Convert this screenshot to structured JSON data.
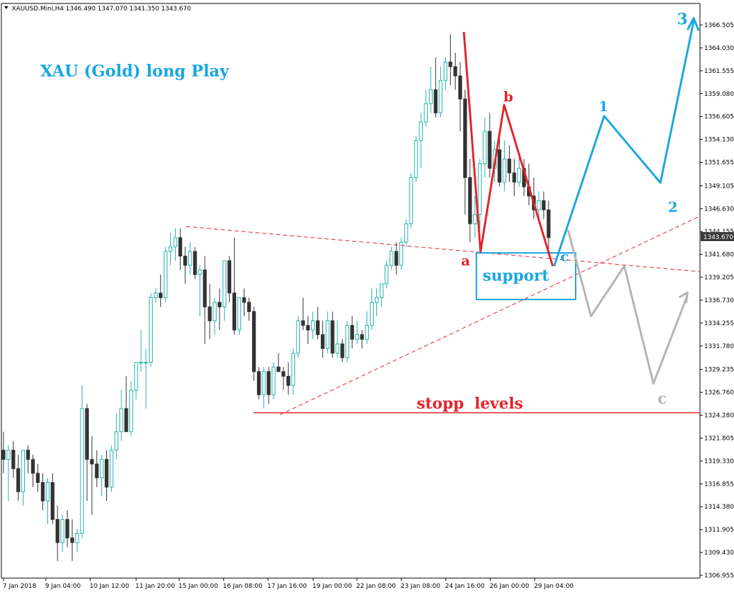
{
  "header": {
    "symbol_line": "XAUUSD.Mini,H4  1346.490 1347.070 1341.350 1343.670"
  },
  "colors": {
    "bull_candle": "#20b2aa",
    "bear_candle": "#333333",
    "red": "#e3242b",
    "blue": "#1aa7e0",
    "grey": "#b4b4b4",
    "price_tag_bg": "#3a3a3a"
  },
  "price_tag": "1343.670",
  "chart_data": {
    "type": "candlestick",
    "title": "XAU (Gold) long Play",
    "ylim": [
      1306.0,
      1368.5
    ],
    "yticks": [
      "1366.505",
      "1364.030",
      "1361.555",
      "1359.080",
      "1356.605",
      "1354.130",
      "1351.655",
      "1349.105",
      "1346.630",
      "1344.155",
      "1341.680",
      "1339.205",
      "1336.730",
      "1334.255",
      "1331.780",
      "1329.235",
      "1326.760",
      "1324.280",
      "1321.805",
      "1319.330",
      "1316.855",
      "1314.380",
      "1311.905",
      "1309.430",
      "1306.955"
    ],
    "xticks": [
      "7 Jan 2018",
      "9 Jan 04:00",
      "10 Jan 12:00",
      "11 Jan 20:00",
      "15 Jan 00:00",
      "16 Jan 08:00",
      "17 Jan 16:00",
      "19 Jan 00:00",
      "22 Jan 08:00",
      "23 Jan 08:00",
      "24 Jan 16:00",
      "26 Jan 00:00",
      "29 Jan 04:00"
    ],
    "candles": [
      [
        1320.5,
        1322.5,
        1318.0,
        1319.5
      ],
      [
        1319.5,
        1321.0,
        1315.0,
        1320.5
      ],
      [
        1320.5,
        1321.5,
        1317.5,
        1318.5
      ],
      [
        1318.5,
        1320.0,
        1315.0,
        1316.0
      ],
      [
        1316.0,
        1320.5,
        1314.5,
        1320.5
      ],
      [
        1320.5,
        1321.0,
        1318.0,
        1319.5
      ],
      [
        1319.5,
        1320.0,
        1316.5,
        1318.0
      ],
      [
        1318.0,
        1319.0,
        1316.0,
        1317.0
      ],
      [
        1317.0,
        1318.0,
        1314.0,
        1315.0
      ],
      [
        1315.0,
        1317.5,
        1312.5,
        1317.0
      ],
      [
        1317.0,
        1318.0,
        1312.5,
        1313.0
      ],
      [
        1313.0,
        1314.5,
        1308.5,
        1310.5
      ],
      [
        1310.5,
        1313.5,
        1309.5,
        1313.0
      ],
      [
        1313.0,
        1314.0,
        1310.0,
        1311.0
      ],
      [
        1311.0,
        1313.0,
        1308.5,
        1310.5
      ],
      [
        1310.5,
        1312.0,
        1309.5,
        1311.5
      ],
      [
        1311.5,
        1327.5,
        1311.0,
        1325.0
      ],
      [
        1325.0,
        1325.5,
        1315.0,
        1319.5
      ],
      [
        1319.5,
        1322.0,
        1313.5,
        1319.0
      ],
      [
        1319.0,
        1320.5,
        1316.5,
        1317.5
      ],
      [
        1317.5,
        1320.0,
        1315.5,
        1319.5
      ],
      [
        1319.5,
        1320.5,
        1315.0,
        1316.5
      ],
      [
        1316.5,
        1321.0,
        1316.0,
        1320.5
      ],
      [
        1320.5,
        1324.5,
        1319.5,
        1322.5
      ],
      [
        1322.5,
        1327.0,
        1321.5,
        1325.0
      ],
      [
        1325.0,
        1328.5,
        1322.5,
        1322.5
      ],
      [
        1322.5,
        1328.0,
        1322.0,
        1327.0
      ],
      [
        1327.0,
        1330.0,
        1326.0,
        1330.0
      ],
      [
        1330.0,
        1333.5,
        1329.0,
        1330.0
      ],
      [
        1330.0,
        1331.5,
        1325.0,
        1330.0
      ],
      [
        1330.0,
        1337.5,
        1329.5,
        1337.0
      ],
      [
        1337.0,
        1338.0,
        1336.5,
        1337.5
      ],
      [
        1337.5,
        1339.5,
        1336.0,
        1337.0
      ],
      [
        1337.0,
        1342.5,
        1336.5,
        1342.0
      ],
      [
        1342.0,
        1344.0,
        1340.5,
        1342.5
      ],
      [
        1342.5,
        1344.5,
        1341.0,
        1343.5
      ],
      [
        1343.5,
        1344.5,
        1340.0,
        1341.5
      ],
      [
        1341.5,
        1342.5,
        1338.5,
        1340.5
      ],
      [
        1340.5,
        1343.0,
        1339.5,
        1342.0
      ],
      [
        1342.0,
        1342.5,
        1339.0,
        1339.5
      ],
      [
        1339.5,
        1340.5,
        1335.0,
        1340.0
      ],
      [
        1340.0,
        1341.5,
        1332.0,
        1336.0
      ],
      [
        1336.0,
        1338.5,
        1332.5,
        1334.5
      ],
      [
        1334.5,
        1337.0,
        1333.0,
        1336.5
      ],
      [
        1336.5,
        1338.0,
        1333.5,
        1336.0
      ],
      [
        1336.0,
        1341.0,
        1334.5,
        1341.0
      ],
      [
        1341.0,
        1341.5,
        1336.5,
        1337.5
      ],
      [
        1337.5,
        1343.5,
        1333.0,
        1333.5
      ],
      [
        1333.5,
        1337.0,
        1333.0,
        1337.0
      ],
      [
        1337.0,
        1338.0,
        1335.0,
        1336.5
      ],
      [
        1336.5,
        1337.0,
        1334.5,
        1335.5
      ],
      [
        1335.5,
        1336.0,
        1328.0,
        1329.0
      ],
      [
        1329.0,
        1329.5,
        1326.0,
        1326.5
      ],
      [
        1326.5,
        1329.5,
        1325.0,
        1329.0
      ],
      [
        1329.0,
        1329.5,
        1325.5,
        1326.5
      ],
      [
        1326.5,
        1330.0,
        1326.0,
        1329.5
      ],
      [
        1329.5,
        1331.0,
        1329.0,
        1329.0
      ],
      [
        1329.0,
        1329.5,
        1327.0,
        1328.5
      ],
      [
        1328.5,
        1330.0,
        1326.5,
        1327.5
      ],
      [
        1327.5,
        1331.5,
        1326.5,
        1331.0
      ],
      [
        1331.0,
        1335.0,
        1330.5,
        1334.5
      ],
      [
        1334.5,
        1337.0,
        1333.5,
        1334.0
      ],
      [
        1334.0,
        1335.0,
        1332.0,
        1333.5
      ],
      [
        1333.5,
        1335.5,
        1332.5,
        1334.5
      ],
      [
        1334.5,
        1336.0,
        1332.5,
        1333.0
      ],
      [
        1333.0,
        1334.5,
        1330.5,
        1331.5
      ],
      [
        1331.5,
        1335.5,
        1331.0,
        1334.5
      ],
      [
        1334.5,
        1335.5,
        1330.5,
        1331.0
      ],
      [
        1331.0,
        1334.5,
        1330.5,
        1332.0
      ],
      [
        1332.0,
        1332.5,
        1330.0,
        1330.5
      ],
      [
        1330.5,
        1334.5,
        1330.0,
        1334.0
      ],
      [
        1334.0,
        1335.0,
        1331.5,
        1332.5
      ],
      [
        1332.5,
        1334.5,
        1332.0,
        1333.0
      ],
      [
        1333.0,
        1333.5,
        1331.5,
        1332.5
      ],
      [
        1332.5,
        1335.5,
        1332.0,
        1334.0
      ],
      [
        1334.0,
        1338.0,
        1333.5,
        1336.5
      ],
      [
        1336.5,
        1338.0,
        1335.0,
        1337.0
      ],
      [
        1337.0,
        1338.5,
        1336.0,
        1338.5
      ],
      [
        1338.5,
        1341.0,
        1338.0,
        1340.5
      ],
      [
        1340.5,
        1342.5,
        1340.0,
        1342.0
      ],
      [
        1342.0,
        1343.0,
        1339.5,
        1340.5
      ],
      [
        1340.5,
        1343.5,
        1340.0,
        1343.0
      ],
      [
        1343.0,
        1345.5,
        1342.5,
        1345.0
      ],
      [
        1345.0,
        1350.5,
        1344.5,
        1350.0
      ],
      [
        1350.0,
        1354.5,
        1349.5,
        1354.0
      ],
      [
        1354.0,
        1357.0,
        1351.0,
        1356.0
      ],
      [
        1356.0,
        1359.5,
        1355.5,
        1358.0
      ],
      [
        1358.0,
        1362.0,
        1357.0,
        1359.5
      ],
      [
        1359.5,
        1363.0,
        1356.5,
        1357.0
      ],
      [
        1357.0,
        1362.0,
        1356.5,
        1360.5
      ],
      [
        1360.5,
        1363.0,
        1359.5,
        1362.5
      ],
      [
        1362.5,
        1365.5,
        1360.0,
        1362.0
      ],
      [
        1362.0,
        1363.5,
        1359.5,
        1361.0
      ],
      [
        1361.0,
        1362.5,
        1355.0,
        1358.5
      ],
      [
        1358.5,
        1359.5,
        1346.0,
        1350.0
      ],
      [
        1350.0,
        1352.0,
        1343.0,
        1345.0
      ],
      [
        1345.0,
        1348.0,
        1343.5,
        1346.0
      ],
      [
        1346.0,
        1352.0,
        1344.5,
        1351.5
      ],
      [
        1351.5,
        1356.5,
        1350.0,
        1355.0
      ],
      [
        1355.0,
        1357.0,
        1350.0,
        1351.0
      ],
      [
        1351.0,
        1354.0,
        1349.5,
        1353.0
      ],
      [
        1353.0,
        1354.5,
        1349.0,
        1349.5
      ],
      [
        1349.5,
        1354.0,
        1348.5,
        1352.0
      ],
      [
        1352.0,
        1353.5,
        1349.5,
        1350.5
      ],
      [
        1350.5,
        1352.0,
        1348.0,
        1349.5
      ],
      [
        1349.5,
        1352.5,
        1349.0,
        1351.0
      ],
      [
        1351.0,
        1352.0,
        1348.0,
        1349.0
      ],
      [
        1349.0,
        1351.5,
        1347.0,
        1348.0
      ],
      [
        1348.0,
        1350.0,
        1345.5,
        1346.5
      ],
      [
        1346.5,
        1348.5,
        1345.0,
        1347.5
      ],
      [
        1347.5,
        1348.5,
        1345.5,
        1346.5
      ],
      [
        1346.5,
        1347.5,
        1341.5,
        1343.5
      ]
    ],
    "annotations": {
      "label_a": "a",
      "label_b": "b",
      "label_c_red": "c",
      "label_1": "1",
      "label_2": "2",
      "label_3": "3",
      "label_c_grey": "c",
      "support": "support",
      "stop": "stopp  levels"
    }
  }
}
